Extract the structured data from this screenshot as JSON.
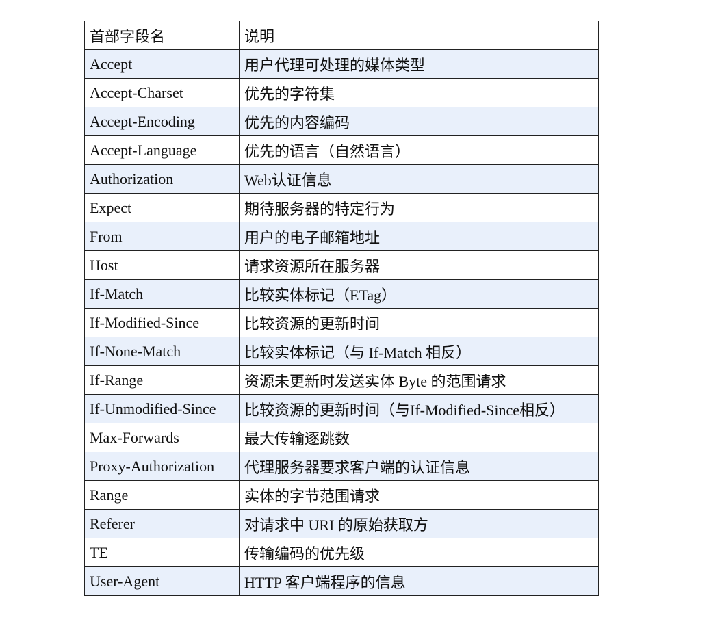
{
  "table": {
    "header": [
      "首部字段名",
      "说明"
    ],
    "rows": [
      [
        "Accept",
        "用户代理可处理的媒体类型"
      ],
      [
        "Accept-Charset",
        "优先的字符集"
      ],
      [
        "Accept-Encoding",
        "优先的内容编码"
      ],
      [
        "Accept-Language",
        "优先的语言（自然语言）"
      ],
      [
        "Authorization",
        "Web认证信息"
      ],
      [
        "Expect",
        "期待服务器的特定行为"
      ],
      [
        "From",
        "用户的电子邮箱地址"
      ],
      [
        "Host",
        "请求资源所在服务器"
      ],
      [
        "If-Match",
        "比较实体标记（ETag）"
      ],
      [
        "If-Modified-Since",
        "比较资源的更新时间"
      ],
      [
        "If-None-Match",
        "比较实体标记（与 If-Match 相反）"
      ],
      [
        "If-Range",
        "资源未更新时发送实体 Byte 的范围请求"
      ],
      [
        "If-Unmodified-Since",
        "比较资源的更新时间（与If-Modified-Since相反）"
      ],
      [
        "Max-Forwards",
        "最大传输逐跳数"
      ],
      [
        "Proxy-Authorization",
        "代理服务器要求客户端的认证信息"
      ],
      [
        "Range",
        "实体的字节范围请求"
      ],
      [
        "Referer",
        "对请求中 URI 的原始获取方"
      ],
      [
        "TE",
        "传输编码的优先级"
      ],
      [
        "User-Agent",
        "HTTP 客户端程序的信息"
      ]
    ]
  }
}
